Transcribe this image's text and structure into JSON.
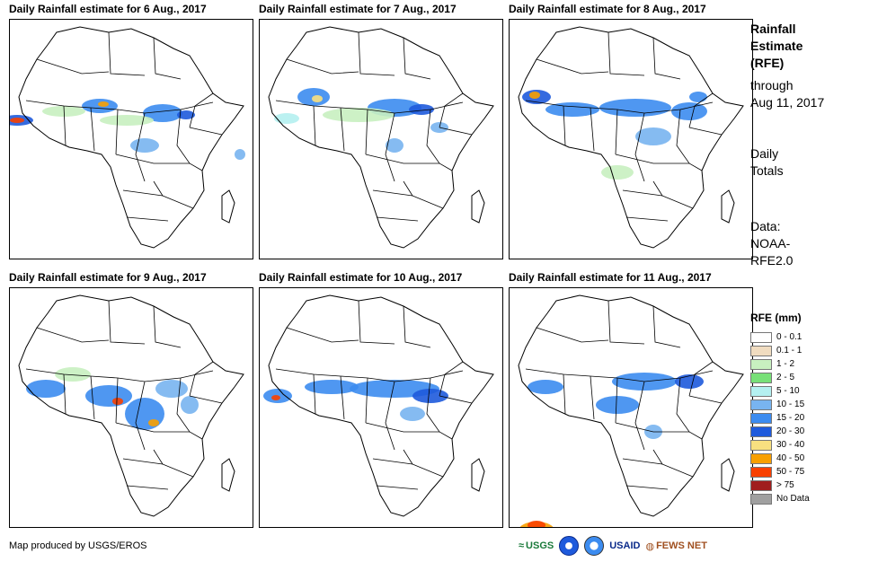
{
  "panels": [
    {
      "title": "Daily Rainfall estimate for 6 Aug., 2017"
    },
    {
      "title": "Daily Rainfall estimate for 7 Aug., 2017"
    },
    {
      "title": "Daily Rainfall estimate for 8 Aug., 2017"
    },
    {
      "title": "Daily Rainfall estimate for 9 Aug., 2017"
    },
    {
      "title": "Daily Rainfall estimate for 10 Aug., 2017"
    },
    {
      "title": "Daily Rainfall estimate for 11 Aug., 2017"
    }
  ],
  "sidebar": {
    "heading_1": "Rainfall",
    "heading_2": "Estimate",
    "heading_3": "(RFE)",
    "through": "through",
    "date": "Aug 11, 2017",
    "daily_1": "Daily",
    "daily_2": "Totals",
    "data_1": "Data:",
    "data_2": "NOAA-",
    "data_3": "RFE2.0"
  },
  "legend": {
    "title": "RFE (mm)",
    "items": [
      {
        "label": "0 - 0.1",
        "color": "#ffffff"
      },
      {
        "label": "0.1 - 1",
        "color": "#f0dcc0"
      },
      {
        "label": "1 - 2",
        "color": "#c8f0c0"
      },
      {
        "label": "2 - 5",
        "color": "#78e078"
      },
      {
        "label": "5 - 10",
        "color": "#b4f0f0"
      },
      {
        "label": "10 - 15",
        "color": "#78b4f0"
      },
      {
        "label": "15 - 20",
        "color": "#3c8cf0"
      },
      {
        "label": "20 - 30",
        "color": "#1e5adc"
      },
      {
        "label": "30 - 40",
        "color": "#f8e080"
      },
      {
        "label": "40 - 50",
        "color": "#f8a000"
      },
      {
        "label": "50 - 75",
        "color": "#f84000"
      },
      {
        "label": "> 75",
        "color": "#a01e1e"
      },
      {
        "label": "No Data",
        "color": "#a0a0a0"
      }
    ]
  },
  "credit": "Map produced by USGS/EROS",
  "logos": {
    "usgs": "USGS",
    "usaid": "USAID",
    "fewsnet": "FEWS NET"
  }
}
